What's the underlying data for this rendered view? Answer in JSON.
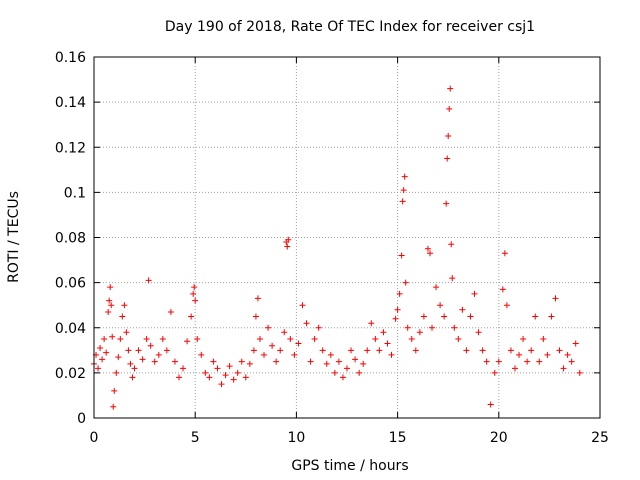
{
  "chart_data": {
    "type": "scatter",
    "title": "Day 190 of 2018, Rate Of TEC Index for receiver csj1",
    "xlabel": "GPS time / hours",
    "ylabel": "ROTI / TECUs",
    "xlim": [
      0,
      25
    ],
    "ylim": [
      0,
      0.16
    ],
    "xticks": [
      0,
      5,
      10,
      15,
      20,
      25
    ],
    "xtick_labels": [
      "0",
      "5",
      "10",
      "15",
      "20",
      "25"
    ],
    "yticks": [
      0,
      0.02,
      0.04,
      0.06,
      0.08,
      0.1,
      0.12,
      0.14,
      0.16
    ],
    "ytick_labels": [
      "0",
      "0.02",
      "0.04",
      "0.06",
      "0.08",
      "0.1",
      "0.12",
      "0.14",
      "0.16"
    ],
    "grid": true,
    "marker": "+",
    "color": "#ff0000",
    "series": [
      {
        "name": "ROTI",
        "points": [
          [
            0.0,
            0.024
          ],
          [
            0.1,
            0.028
          ],
          [
            0.2,
            0.022
          ],
          [
            0.3,
            0.031
          ],
          [
            0.4,
            0.026
          ],
          [
            0.5,
            0.035
          ],
          [
            0.6,
            0.029
          ],
          [
            0.7,
            0.047
          ],
          [
            0.75,
            0.052
          ],
          [
            0.8,
            0.058
          ],
          [
            0.85,
            0.05
          ],
          [
            0.9,
            0.036
          ],
          [
            0.95,
            0.005
          ],
          [
            1.0,
            0.012
          ],
          [
            1.1,
            0.02
          ],
          [
            1.2,
            0.027
          ],
          [
            1.3,
            0.035
          ],
          [
            1.4,
            0.045
          ],
          [
            1.5,
            0.05
          ],
          [
            1.6,
            0.038
          ],
          [
            1.7,
            0.03
          ],
          [
            1.8,
            0.024
          ],
          [
            1.9,
            0.018
          ],
          [
            2.0,
            0.022
          ],
          [
            2.2,
            0.03
          ],
          [
            2.4,
            0.026
          ],
          [
            2.6,
            0.035
          ],
          [
            2.7,
            0.061
          ],
          [
            2.8,
            0.032
          ],
          [
            3.0,
            0.025
          ],
          [
            3.2,
            0.028
          ],
          [
            3.4,
            0.035
          ],
          [
            3.6,
            0.03
          ],
          [
            3.8,
            0.047
          ],
          [
            4.0,
            0.025
          ],
          [
            4.2,
            0.018
          ],
          [
            4.4,
            0.022
          ],
          [
            4.6,
            0.034
          ],
          [
            4.8,
            0.045
          ],
          [
            4.9,
            0.055
          ],
          [
            4.95,
            0.058
          ],
          [
            5.0,
            0.052
          ],
          [
            5.1,
            0.035
          ],
          [
            5.3,
            0.028
          ],
          [
            5.5,
            0.02
          ],
          [
            5.7,
            0.018
          ],
          [
            5.9,
            0.025
          ],
          [
            6.1,
            0.022
          ],
          [
            6.3,
            0.015
          ],
          [
            6.5,
            0.019
          ],
          [
            6.7,
            0.023
          ],
          [
            6.9,
            0.017
          ],
          [
            7.1,
            0.02
          ],
          [
            7.3,
            0.025
          ],
          [
            7.5,
            0.018
          ],
          [
            7.7,
            0.024
          ],
          [
            7.9,
            0.03
          ],
          [
            8.0,
            0.045
          ],
          [
            8.1,
            0.053
          ],
          [
            8.2,
            0.035
          ],
          [
            8.4,
            0.028
          ],
          [
            8.6,
            0.04
          ],
          [
            8.8,
            0.032
          ],
          [
            9.0,
            0.025
          ],
          [
            9.2,
            0.03
          ],
          [
            9.4,
            0.038
          ],
          [
            9.5,
            0.078
          ],
          [
            9.55,
            0.076
          ],
          [
            9.6,
            0.079
          ],
          [
            9.7,
            0.035
          ],
          [
            9.9,
            0.028
          ],
          [
            10.1,
            0.033
          ],
          [
            10.3,
            0.05
          ],
          [
            10.5,
            0.042
          ],
          [
            10.7,
            0.025
          ],
          [
            10.9,
            0.035
          ],
          [
            11.1,
            0.04
          ],
          [
            11.3,
            0.03
          ],
          [
            11.5,
            0.024
          ],
          [
            11.7,
            0.028
          ],
          [
            11.9,
            0.02
          ],
          [
            12.1,
            0.025
          ],
          [
            12.3,
            0.018
          ],
          [
            12.5,
            0.022
          ],
          [
            12.7,
            0.03
          ],
          [
            12.9,
            0.026
          ],
          [
            13.1,
            0.02
          ],
          [
            13.3,
            0.024
          ],
          [
            13.5,
            0.03
          ],
          [
            13.7,
            0.042
          ],
          [
            13.9,
            0.035
          ],
          [
            14.1,
            0.03
          ],
          [
            14.3,
            0.038
          ],
          [
            14.5,
            0.033
          ],
          [
            14.7,
            0.028
          ],
          [
            14.9,
            0.044
          ],
          [
            15.0,
            0.048
          ],
          [
            15.1,
            0.055
          ],
          [
            15.2,
            0.072
          ],
          [
            15.25,
            0.096
          ],
          [
            15.3,
            0.101
          ],
          [
            15.35,
            0.107
          ],
          [
            15.4,
            0.06
          ],
          [
            15.5,
            0.04
          ],
          [
            15.7,
            0.035
          ],
          [
            15.9,
            0.03
          ],
          [
            16.1,
            0.038
          ],
          [
            16.3,
            0.045
          ],
          [
            16.5,
            0.075
          ],
          [
            16.6,
            0.073
          ],
          [
            16.7,
            0.04
          ],
          [
            16.9,
            0.058
          ],
          [
            17.1,
            0.05
          ],
          [
            17.3,
            0.045
          ],
          [
            17.4,
            0.095
          ],
          [
            17.45,
            0.115
          ],
          [
            17.5,
            0.125
          ],
          [
            17.55,
            0.137
          ],
          [
            17.6,
            0.146
          ],
          [
            17.65,
            0.077
          ],
          [
            17.7,
            0.062
          ],
          [
            17.8,
            0.04
          ],
          [
            18.0,
            0.035
          ],
          [
            18.2,
            0.048
          ],
          [
            18.4,
            0.03
          ],
          [
            18.6,
            0.045
          ],
          [
            18.8,
            0.055
          ],
          [
            19.0,
            0.038
          ],
          [
            19.2,
            0.03
          ],
          [
            19.4,
            0.025
          ],
          [
            19.6,
            0.006
          ],
          [
            19.8,
            0.02
          ],
          [
            20.0,
            0.025
          ],
          [
            20.2,
            0.057
          ],
          [
            20.3,
            0.073
          ],
          [
            20.4,
            0.05
          ],
          [
            20.6,
            0.03
          ],
          [
            20.8,
            0.022
          ],
          [
            21.0,
            0.028
          ],
          [
            21.2,
            0.035
          ],
          [
            21.4,
            0.025
          ],
          [
            21.6,
            0.03
          ],
          [
            21.8,
            0.045
          ],
          [
            22.0,
            0.025
          ],
          [
            22.2,
            0.035
          ],
          [
            22.4,
            0.028
          ],
          [
            22.6,
            0.045
          ],
          [
            22.8,
            0.053
          ],
          [
            23.0,
            0.03
          ],
          [
            23.2,
            0.022
          ],
          [
            23.4,
            0.028
          ],
          [
            23.6,
            0.025
          ],
          [
            23.8,
            0.033
          ],
          [
            24.0,
            0.02
          ]
        ]
      }
    ]
  }
}
